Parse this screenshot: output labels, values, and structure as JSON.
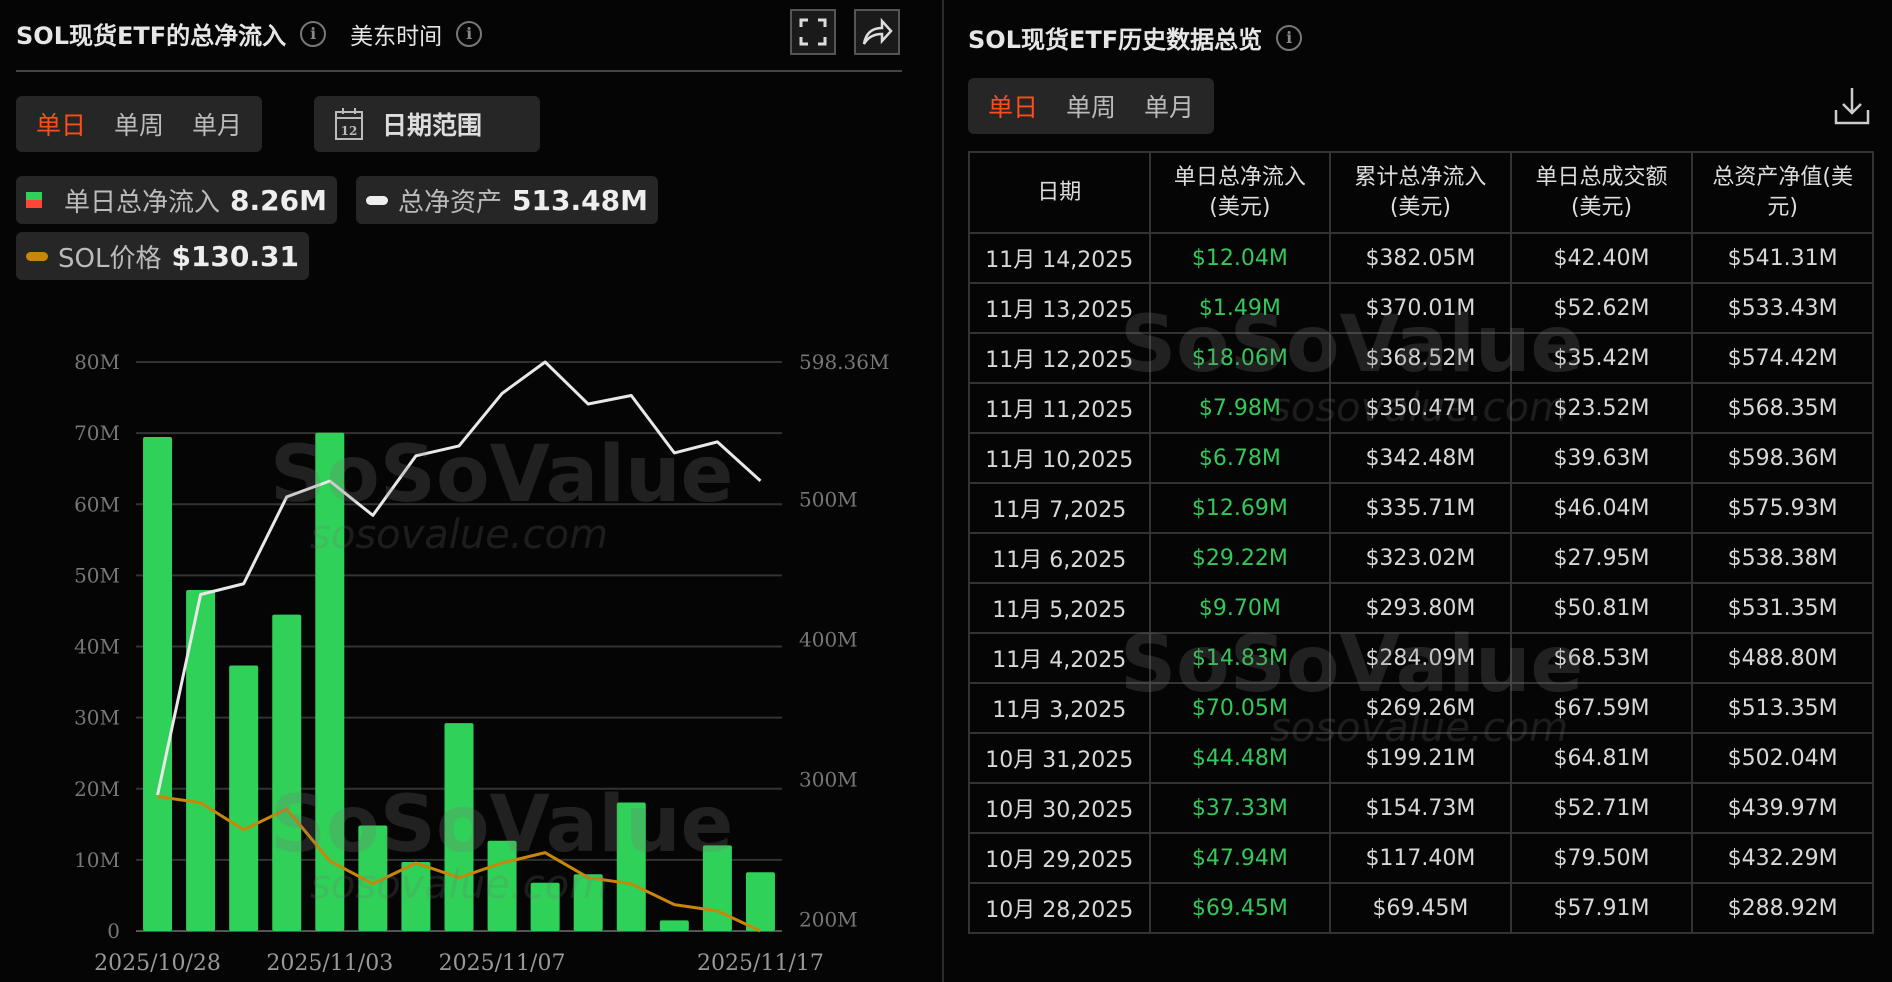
{
  "left": {
    "title": "SOL现货ETF的总净流入",
    "timezone": "美东时间",
    "icons": {
      "info": "info-icon",
      "fullscreen": "fullscreen-icon",
      "share": "share-icon",
      "calendar": "calendar-icon"
    },
    "tabs": [
      "单日",
      "单周",
      "单月"
    ],
    "active_tab": "单日",
    "date_range_label": "日期范围",
    "calendar_day": "12",
    "legend": [
      {
        "label": "单日总净流入",
        "value": "8.26M"
      },
      {
        "label": "总净资产",
        "value": "513.48M"
      },
      {
        "label": "SOL价格",
        "value": "$130.31"
      }
    ],
    "watermark": {
      "brand": "SoSoValue",
      "site": "sosovalue.com"
    }
  },
  "chart_data": {
    "type": "bar",
    "categories": [
      "2025/10/28",
      "2025/10/29",
      "2025/10/30",
      "2025/10/31",
      "2025/11/03",
      "2025/11/04",
      "2025/11/05",
      "2025/11/06",
      "2025/11/07",
      "2025/11/10",
      "2025/11/11",
      "2025/11/12",
      "2025/11/13",
      "2025/11/14",
      "2025/11/17"
    ],
    "x_tick_labels": [
      "2025/10/28",
      "2025/11/03",
      "2025/11/07",
      "2025/11/17"
    ],
    "left_axis": {
      "ticks": [
        "0",
        "10M",
        "20M",
        "30M",
        "40M",
        "50M",
        "60M",
        "70M",
        "80M"
      ],
      "range": [
        0,
        80
      ]
    },
    "right_axis": {
      "ticks": [
        "200M",
        "300M",
        "400M",
        "500M",
        "598.36M"
      ],
      "tick_values": [
        200,
        300,
        400,
        500,
        598.36
      ]
    },
    "series": [
      {
        "name": "单日总净流入",
        "kind": "bar",
        "axis": "left",
        "unit": "M USD",
        "color": "#30d158",
        "values": [
          69.45,
          47.94,
          37.33,
          44.48,
          70.05,
          14.83,
          9.7,
          29.22,
          12.69,
          6.78,
          7.98,
          18.06,
          1.49,
          12.04,
          8.26
        ]
      },
      {
        "name": "总净资产",
        "kind": "line",
        "axis": "right",
        "unit": "M USD",
        "color": "#e8e8e8",
        "values": [
          288.92,
          432.29,
          439.97,
          502.04,
          513.35,
          488.8,
          531.35,
          538.38,
          575.93,
          598.36,
          568.35,
          574.42,
          533.43,
          541.31,
          513.48
        ]
      },
      {
        "name": "SOL价格",
        "kind": "line",
        "axis": "hidden",
        "unit": "USD",
        "color": "#c8860a",
        "values": [
          195,
          192,
          179,
          189,
          164,
          153,
          163,
          156,
          163,
          168,
          156,
          153,
          143,
          140,
          130.31
        ]
      }
    ],
    "grid": true,
    "legend_placement": "top-left"
  },
  "right": {
    "title": "SOL现货ETF历史数据总览",
    "tabs": [
      "单日",
      "单周",
      "单月"
    ],
    "active_tab": "单日",
    "download_icon": "download-icon",
    "columns": [
      [
        "日期",
        ""
      ],
      [
        "单日总净流入",
        "(美元)"
      ],
      [
        "累计总净流入",
        "(美元)"
      ],
      [
        "单日总成交额",
        "(美元)"
      ],
      [
        "总资产净值(美",
        "元)"
      ]
    ],
    "rows": [
      [
        "11月 14,2025",
        "$12.04M",
        "$382.05M",
        "$42.40M",
        "$541.31M"
      ],
      [
        "11月 13,2025",
        "$1.49M",
        "$370.01M",
        "$52.62M",
        "$533.43M"
      ],
      [
        "11月 12,2025",
        "$18.06M",
        "$368.52M",
        "$35.42M",
        "$574.42M"
      ],
      [
        "11月 11,2025",
        "$7.98M",
        "$350.47M",
        "$23.52M",
        "$568.35M"
      ],
      [
        "11月 10,2025",
        "$6.78M",
        "$342.48M",
        "$39.63M",
        "$598.36M"
      ],
      [
        "11月 7,2025",
        "$12.69M",
        "$335.71M",
        "$46.04M",
        "$575.93M"
      ],
      [
        "11月 6,2025",
        "$29.22M",
        "$323.02M",
        "$27.95M",
        "$538.38M"
      ],
      [
        "11月 5,2025",
        "$9.70M",
        "$293.80M",
        "$50.81M",
        "$531.35M"
      ],
      [
        "11月 4,2025",
        "$14.83M",
        "$284.09M",
        "$68.53M",
        "$488.80M"
      ],
      [
        "11月 3,2025",
        "$70.05M",
        "$269.26M",
        "$67.59M",
        "$513.35M"
      ],
      [
        "10月 31,2025",
        "$44.48M",
        "$199.21M",
        "$64.81M",
        "$502.04M"
      ],
      [
        "10月 30,2025",
        "$37.33M",
        "$154.73M",
        "$52.71M",
        "$439.97M"
      ],
      [
        "10月 29,2025",
        "$47.94M",
        "$117.40M",
        "$79.50M",
        "$432.29M"
      ],
      [
        "10月 28,2025",
        "$69.45M",
        "$69.45M",
        "$57.91M",
        "$288.92M"
      ]
    ]
  }
}
